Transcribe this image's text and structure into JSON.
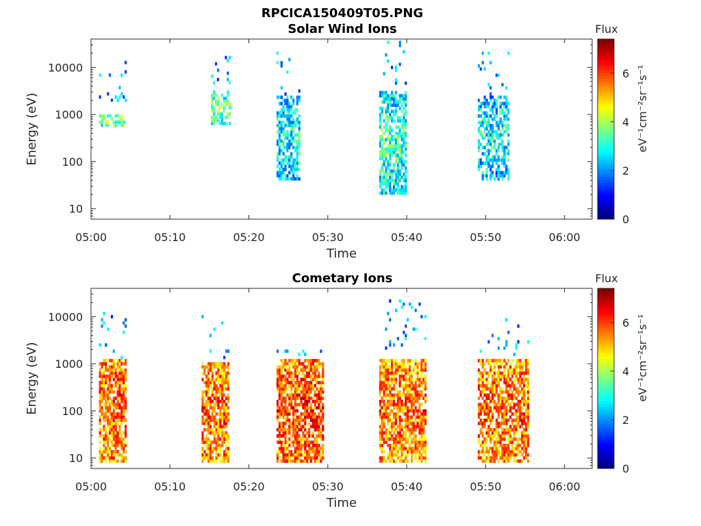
{
  "figure_title": "RPCICA150409T05.PNG",
  "colors": {
    "colormap": "jet",
    "axes_line": "#262626",
    "background": "#ffffff"
  },
  "chart_data": [
    {
      "type": "heatmap",
      "title": "Solar Wind Ions",
      "xlabel": "Time",
      "ylabel": "Energy (eV)",
      "x_ticks": [
        "05:00",
        "05:10",
        "05:20",
        "05:30",
        "05:40",
        "05:50",
        "06:00"
      ],
      "x_range_minutes": [
        0,
        63.5
      ],
      "y_scale": "log",
      "y_ticks": [
        "10",
        "100",
        "1000",
        "10000"
      ],
      "y_range": [
        6,
        40000
      ],
      "colorbar": {
        "label": "Flux",
        "unit": "eV⁻¹cm⁻²sr⁻¹s⁻¹",
        "range": [
          0,
          7.4
        ],
        "ticks": [
          "0",
          "2",
          "4",
          "6"
        ]
      },
      "bursts": [
        {
          "t_start": 1.0,
          "t_end": 4.5,
          "e_low": 550,
          "e_high": 1000,
          "flux": 3.3,
          "density": 0.55,
          "sparse_upper": 12000
        },
        {
          "t_start": 15.2,
          "t_end": 17.5,
          "e_low": 600,
          "e_high": 2500,
          "flux": 3.2,
          "density": 0.55,
          "sparse_upper": 18000
        },
        {
          "t_start": 23.5,
          "t_end": 26.5,
          "e_low": 40,
          "e_high": 2500,
          "flux": 2.3,
          "density": 0.65,
          "sparse_upper": 20000
        },
        {
          "t_start": 36.5,
          "t_end": 40.0,
          "e_low": 20,
          "e_high": 3000,
          "flux": 2.6,
          "density": 0.7,
          "sparse_upper": 35000
        },
        {
          "t_start": 49.0,
          "t_end": 53.0,
          "e_low": 40,
          "e_high": 2500,
          "flux": 2.2,
          "density": 0.65,
          "sparse_upper": 25000
        }
      ]
    },
    {
      "type": "heatmap",
      "title": "Cometary Ions",
      "xlabel": "Time",
      "ylabel": "Energy (eV)",
      "x_ticks": [
        "05:00",
        "05:10",
        "05:20",
        "05:30",
        "05:40",
        "05:50",
        "06:00"
      ],
      "x_range_minutes": [
        0,
        63.5
      ],
      "y_scale": "log",
      "y_ticks": [
        "10",
        "100",
        "1000",
        "10000"
      ],
      "y_range": [
        6,
        40000
      ],
      "colorbar": {
        "label": "Flux",
        "unit": "eV⁻¹cm⁻²sr⁻¹s⁻¹",
        "range": [
          0,
          7.4
        ],
        "ticks": [
          "0",
          "2",
          "4",
          "6"
        ]
      },
      "bursts": [
        {
          "t_start": 1.0,
          "t_end": 4.5,
          "e_low": 8,
          "e_high": 1200,
          "flux": 5.3,
          "density": 0.75,
          "sparse_upper": 11000
        },
        {
          "t_start": 14.0,
          "t_end": 17.5,
          "e_low": 8,
          "e_high": 1000,
          "flux": 5.3,
          "density": 0.75,
          "sparse_upper": 13000
        },
        {
          "t_start": 23.5,
          "t_end": 29.5,
          "e_low": 8,
          "e_high": 1200,
          "flux": 5.5,
          "density": 0.75,
          "sparse_upper": 1800
        },
        {
          "t_start": 36.5,
          "t_end": 42.5,
          "e_low": 8,
          "e_high": 1200,
          "flux": 5.2,
          "density": 0.75,
          "sparse_upper": 22000
        },
        {
          "t_start": 49.0,
          "t_end": 55.5,
          "e_low": 8,
          "e_high": 1200,
          "flux": 5.2,
          "density": 0.75,
          "sparse_upper": 9000
        }
      ]
    }
  ]
}
